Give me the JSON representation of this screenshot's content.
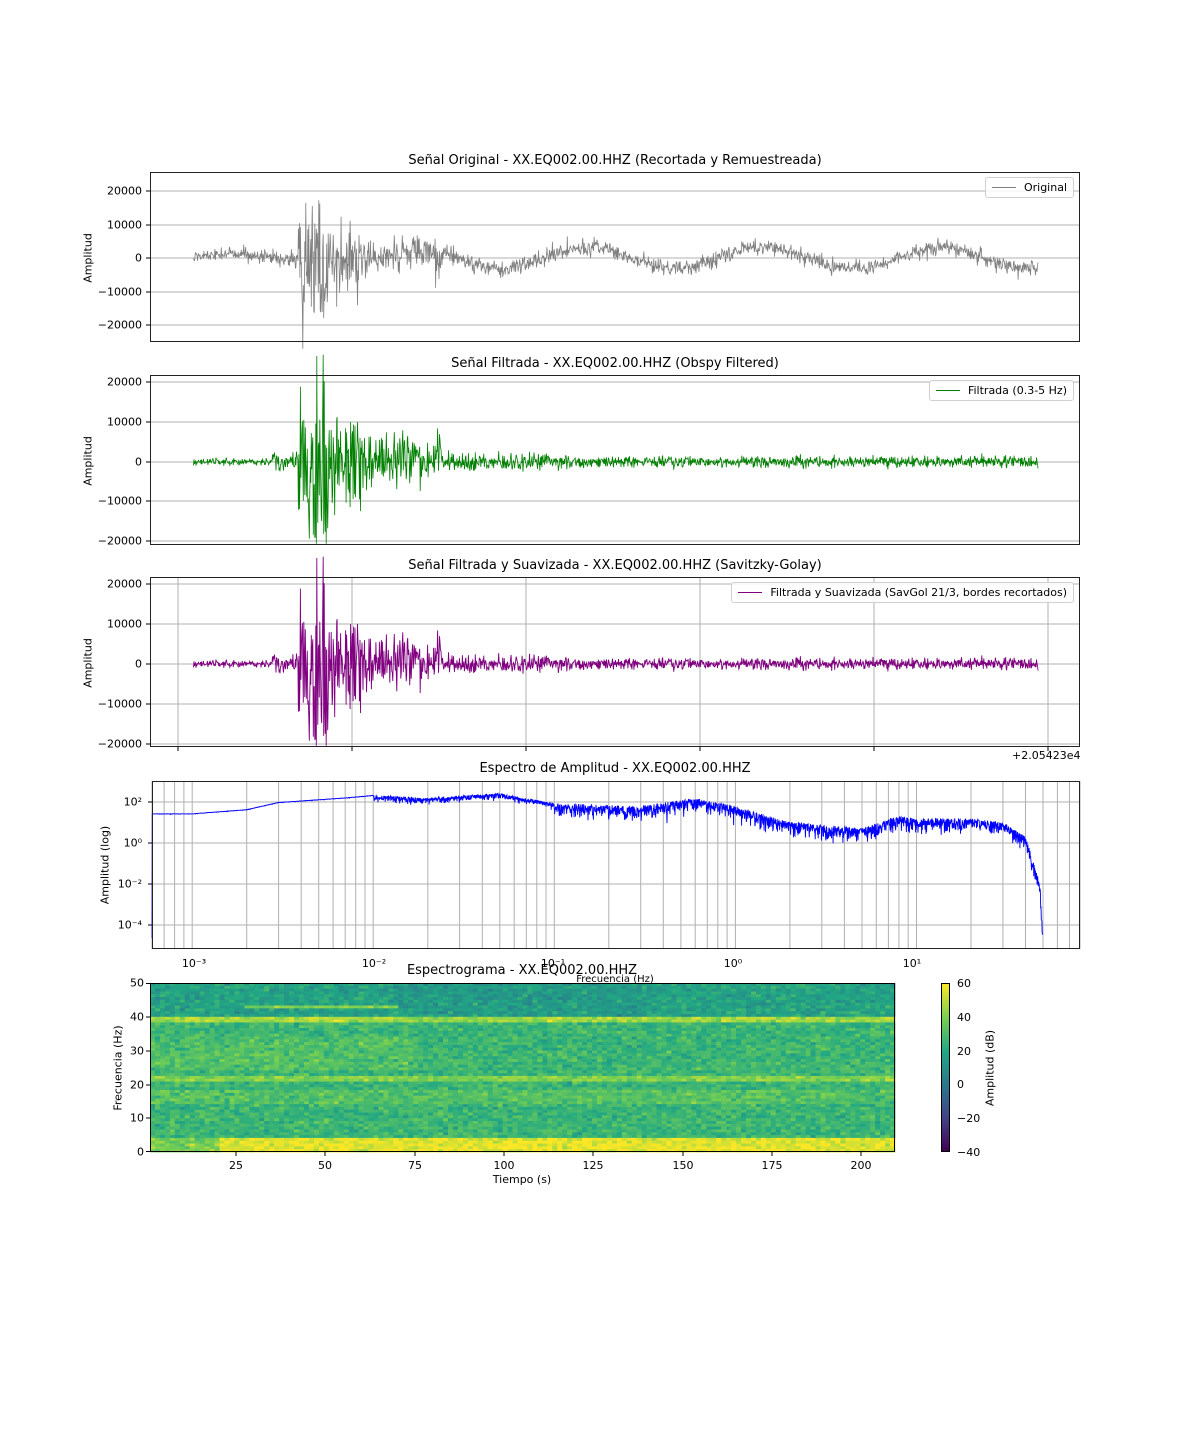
{
  "figure": {
    "panels": [
      {
        "id": "original",
        "title": "Señal Original - XX.EQ002.00.HHZ (Recortada y Remuestreada)",
        "ylabel": "Amplitud",
        "yticks": [
          "20000",
          "10000",
          "0",
          "−10000",
          "−20000"
        ],
        "legend": "Original",
        "color": "#808080"
      },
      {
        "id": "filtered",
        "title": "Señal Filtrada - XX.EQ002.00.HHZ (Obspy Filtered)",
        "ylabel": "Amplitud",
        "yticks": [
          "20000",
          "10000",
          "0",
          "−10000",
          "−20000"
        ],
        "legend": "Filtrada (0.3-5 Hz)",
        "color": "#008000"
      },
      {
        "id": "smoothed",
        "title": "Señal Filtrada y Suavizada - XX.EQ002.00.HHZ (Savitzky-Golay)",
        "ylabel": "Amplitud",
        "yticks": [
          "20000",
          "10000",
          "0",
          "−10000",
          "−20000"
        ],
        "legend": "Filtrada y Suavizada (SavGol 21/3, bordes recortados)",
        "color": "#800080",
        "offset_text": "+2.05423e4"
      },
      {
        "id": "spectrum",
        "title": "Espectro de Amplitud - XX.EQ002.00.HHZ",
        "ylabel": "Amplitud (log)",
        "xlabel": "Frecuencia (Hz)",
        "yticks": [
          "10²",
          "10⁰",
          "10⁻²",
          "10⁻⁴"
        ],
        "xticks": [
          "10⁻³",
          "10⁻²",
          "10⁻¹",
          "10⁰",
          "10¹"
        ],
        "color": "#0000ff"
      },
      {
        "id": "spectrogram",
        "title": "Espectrograma - XX.EQ002.00.HHZ",
        "ylabel": "Frecuencia (Hz)",
        "xlabel": "Tiempo (s)",
        "yticks": [
          "50",
          "40",
          "30",
          "20",
          "10",
          "0"
        ],
        "xticks": [
          "25",
          "50",
          "75",
          "100",
          "125",
          "150",
          "175",
          "200"
        ],
        "colorbar_label": "Amplitud (dB)",
        "colorbar_ticks": [
          "60",
          "40",
          "20",
          "0",
          "−20",
          "−40"
        ]
      }
    ]
  },
  "chart_data": [
    {
      "type": "line",
      "title": "Señal Original - XX.EQ002.00.HHZ (Recortada y Remuestreada)",
      "xlabel": "",
      "ylabel": "Amplitud",
      "ylim": [
        -25000,
        25000
      ],
      "yticks": [
        20000,
        10000,
        0,
        -10000,
        -20000
      ],
      "grid": true,
      "legend": {
        "position": "upper right",
        "entries": [
          "Original"
        ]
      },
      "series": [
        {
          "name": "Original",
          "color": "#808080",
          "description": "noisy seismic trace with long-period oscillation ±5000, peaks to ~23000 / -22000 near the event onset"
        }
      ],
      "peak_max": 23000,
      "peak_min": -22000
    },
    {
      "type": "line",
      "title": "Señal Filtrada - XX.EQ002.00.HHZ (Obspy Filtered)",
      "xlabel": "",
      "ylabel": "Amplitud",
      "ylim": [
        -20000,
        21000
      ],
      "yticks": [
        20000,
        10000,
        0,
        -10000,
        -20000
      ],
      "grid": true,
      "legend": {
        "position": "upper right",
        "entries": [
          "Filtrada (0.3-5 Hz)"
        ]
      },
      "series": [
        {
          "name": "Filtrada (0.3-5 Hz)",
          "color": "#008000"
        }
      ],
      "peak_max": 19500,
      "peak_min": -18800
    },
    {
      "type": "line",
      "title": "Señal Filtrada y Suavizada - XX.EQ002.00.HHZ (Savitzky-Golay)",
      "xlabel": "",
      "ylabel": "Amplitud",
      "ylim": [
        -20500,
        21000
      ],
      "yticks": [
        20000,
        10000,
        0,
        -10000,
        -20000
      ],
      "x_offset_text": "+2.05423e4",
      "grid": true,
      "legend": {
        "position": "upper right",
        "entries": [
          "Filtrada y Suavizada (SavGol 21/3, bordes recortados)"
        ]
      },
      "series": [
        {
          "name": "Filtrada y Suavizada (SavGol 21/3, bordes recortados)",
          "color": "#800080"
        }
      ],
      "peak_max": 19300,
      "peak_min": -18500
    },
    {
      "type": "line",
      "title": "Espectro de Amplitud - XX.EQ002.00.HHZ",
      "xlabel": "Frecuencia (Hz)",
      "ylabel": "Amplitud (log)",
      "xscale": "log",
      "yscale": "log",
      "xlim": [
        0.0006,
        80
      ],
      "ylim": [
        6e-06,
        1000
      ],
      "xticks": [
        "1e-3",
        "1e-2",
        "1e-1",
        "1e0",
        "1e1"
      ],
      "yticks": [
        "1e2",
        "1e0",
        "1e-2",
        "1e-4"
      ],
      "grid": true,
      "series": [
        {
          "name": "spectrum",
          "color": "#0000ff",
          "x": [
            0.0006,
            0.001,
            0.002,
            0.003,
            0.007,
            0.01,
            0.02,
            0.05,
            0.1,
            0.3,
            0.6,
            1,
            2,
            5,
            8,
            10,
            20,
            30,
            40,
            48,
            50
          ],
          "y": [
            25,
            25,
            40,
            90,
            150,
            200,
            150,
            250,
            80,
            60,
            150,
            60,
            10,
            5,
            20,
            15,
            15,
            10,
            2,
            0.01,
            2e-05
          ]
        }
      ]
    },
    {
      "type": "heatmap",
      "title": "Espectrograma - XX.EQ002.00.HHZ",
      "xlabel": "Tiempo (s)",
      "ylabel": "Frecuencia (Hz)",
      "xlim": [
        1,
        210
      ],
      "ylim": [
        0,
        50
      ],
      "xticks": [
        25,
        50,
        75,
        100,
        125,
        150,
        175,
        200
      ],
      "yticks": [
        0,
        10,
        20,
        30,
        40,
        50
      ],
      "colormap": "viridis",
      "colorbar": {
        "label": "Amplitud (dB)",
        "range": [
          -40,
          60
        ],
        "ticks": [
          60,
          40,
          20,
          0,
          -20,
          -40
        ]
      },
      "features": [
        {
          "kind": "band",
          "freq_hz": 2,
          "description": "strong low-frequency energy 0–4 Hz, brightest after 20 s"
        },
        {
          "kind": "line",
          "freq_hz": 39,
          "description": "narrow persistent line ~39 Hz"
        },
        {
          "kind": "line",
          "freq_hz": 43,
          "t_range": [
            27,
            70
          ],
          "description": "narrow line ~43 Hz"
        },
        {
          "kind": "line",
          "freq_hz": 21.5,
          "description": "narrow persistent line ~21.5 Hz"
        },
        {
          "kind": "band",
          "freq_hz": 16,
          "description": "broader bright band ~15–17 Hz"
        }
      ],
      "typical_level_db": [
        20,
        50
      ]
    }
  ]
}
